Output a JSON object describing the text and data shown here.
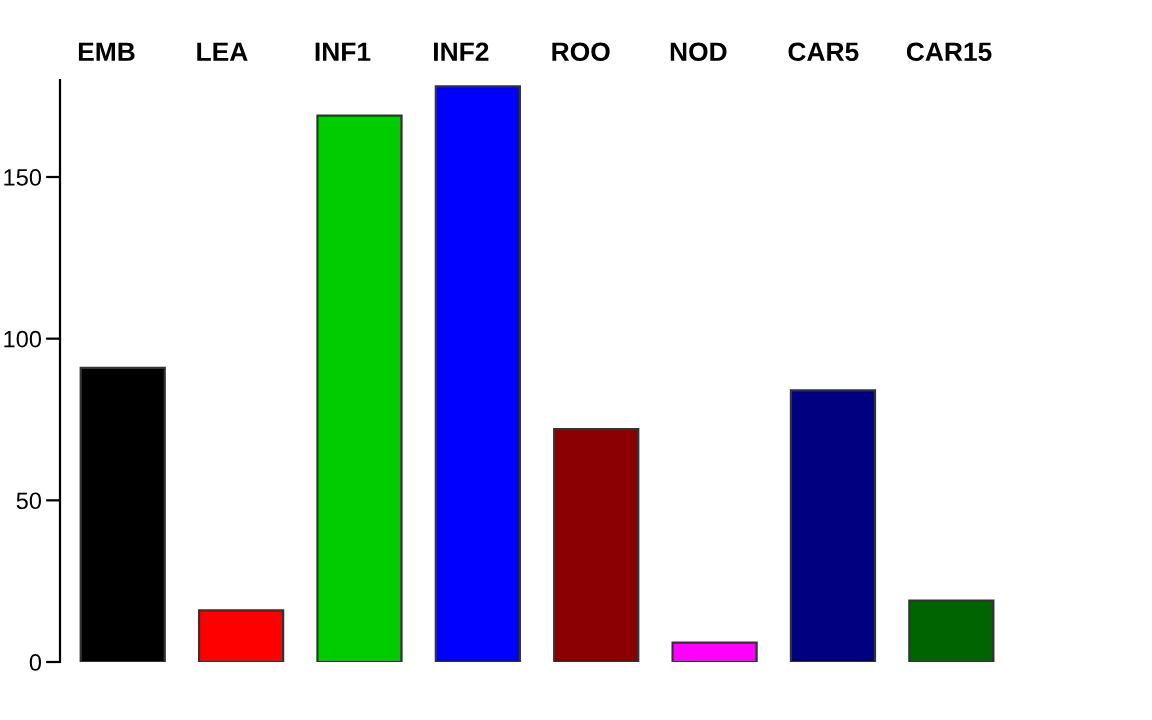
{
  "chart_data": {
    "type": "bar",
    "categories": [
      "EMB",
      "LEA",
      "INF1",
      "INF2",
      "ROO",
      "NOD",
      "CAR5",
      "CAR15"
    ],
    "values": [
      91,
      16,
      169,
      178,
      72,
      6,
      84,
      19
    ],
    "colors": [
      "#000000",
      "#ff0000",
      "#00cd00",
      "#0000ff",
      "#8b0000",
      "#ff00ff",
      "#000080",
      "#006400"
    ],
    "ylim": [
      0,
      180
    ],
    "yticks": [
      0,
      50,
      100,
      150
    ],
    "grid": false,
    "legend": false
  }
}
